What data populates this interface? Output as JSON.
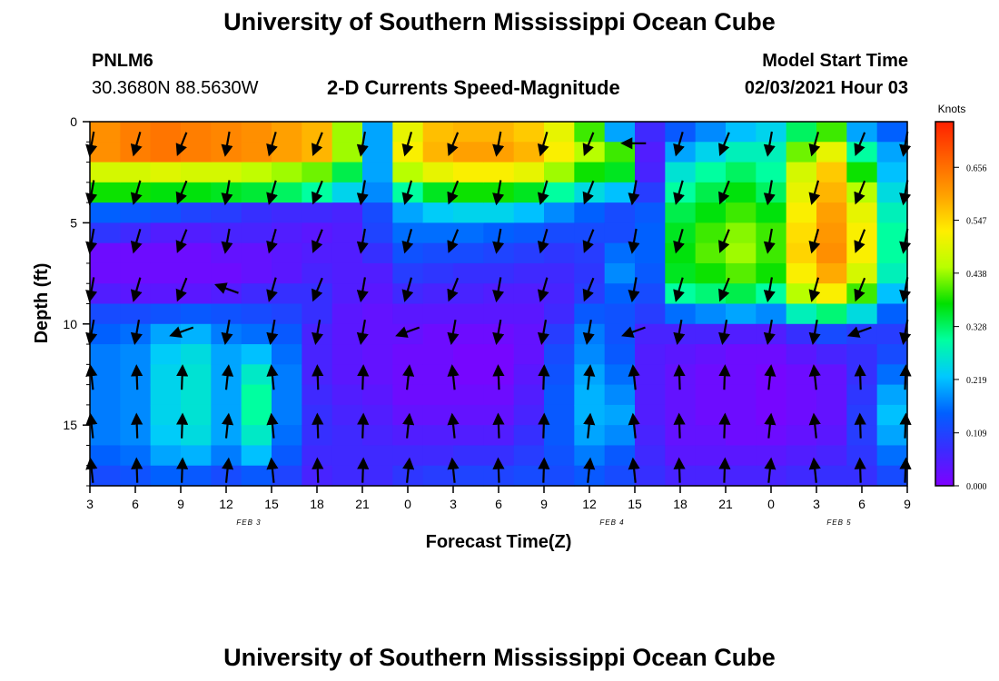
{
  "header": {
    "title": "University of Southern Mississippi Ocean Cube",
    "station_id": "PNLM6",
    "station_coords": "30.3680N 88.5630W",
    "chart_title": "2-D Currents Speed-Magnitude",
    "model_label": "Model Start Time",
    "model_time": "02/03/2021 Hour 03"
  },
  "footer": {
    "title": "University of Southern Mississippi Ocean Cube"
  },
  "chart_data": {
    "type": "heatmap",
    "title": "2-D Currents Speed-Magnitude",
    "xlabel": "Forecast Time(Z)",
    "ylabel": "Depth (ft)",
    "x_tick_labels": [
      "3",
      "6",
      "9",
      "12",
      "15",
      "18",
      "21",
      "0",
      "3",
      "6",
      "9",
      "12",
      "15",
      "18",
      "21",
      "0",
      "3",
      "6",
      "9"
    ],
    "date_labels": [
      {
        "label": "FEB 3",
        "after_tick": 3.5
      },
      {
        "label": "FEB 4",
        "after_tick": 11.5
      },
      {
        "label": "FEB 5",
        "after_tick": 16.5
      }
    ],
    "y_ticks": [
      0,
      5,
      10,
      15
    ],
    "ylim": [
      0,
      18
    ],
    "y_inverted": true,
    "colorbar": {
      "unit_label": "Knots",
      "tick_labels": [
        "0.000",
        "0.109",
        "0.219",
        "0.328",
        "0.438",
        "0.547",
        "0.656"
      ],
      "range": [
        0,
        0.75
      ],
      "colors": [
        "#7f00ff",
        "#3a2cff",
        "#0060ff",
        "#00c8ff",
        "#00ffa0",
        "#00e000",
        "#b8ff00",
        "#ffee00",
        "#ffa000",
        "#ff6000",
        "#ff2000"
      ]
    },
    "depth_levels_ft": [
      0.5,
      1.5,
      2.5,
      3.5,
      4.5,
      5.5,
      6.5,
      7.5,
      8.5,
      9.5,
      10.5,
      11.5,
      12.5,
      13.5,
      14.5,
      15.5,
      16.5,
      17.5
    ],
    "time_steps": [
      {
        "t": 0,
        "speed": [
          0.62,
          0.62,
          0.48,
          0.38,
          0.15,
          0.09,
          0.02,
          0.02,
          0.05,
          0.12,
          0.15,
          0.17,
          0.17,
          0.17,
          0.17,
          0.17,
          0.15,
          0.12
        ]
      },
      {
        "t": 1,
        "speed": [
          0.64,
          0.64,
          0.48,
          0.38,
          0.14,
          0.07,
          0.02,
          0.02,
          0.04,
          0.12,
          0.16,
          0.18,
          0.18,
          0.18,
          0.18,
          0.18,
          0.16,
          0.13
        ]
      },
      {
        "t": 2,
        "speed": [
          0.65,
          0.65,
          0.49,
          0.37,
          0.13,
          0.05,
          0.02,
          0.02,
          0.04,
          0.13,
          0.2,
          0.23,
          0.24,
          0.24,
          0.24,
          0.23,
          0.2,
          0.15
        ]
      },
      {
        "t": 3,
        "speed": [
          0.64,
          0.64,
          0.48,
          0.37,
          0.11,
          0.05,
          0.02,
          0.02,
          0.04,
          0.14,
          0.21,
          0.25,
          0.26,
          0.26,
          0.26,
          0.25,
          0.21,
          0.14
        ]
      },
      {
        "t": 4,
        "speed": [
          0.63,
          0.63,
          0.48,
          0.36,
          0.1,
          0.06,
          0.03,
          0.02,
          0.05,
          0.13,
          0.17,
          0.2,
          0.2,
          0.2,
          0.2,
          0.2,
          0.17,
          0.12
        ]
      },
      {
        "t": 5,
        "speed": [
          0.62,
          0.62,
          0.46,
          0.35,
          0.08,
          0.06,
          0.03,
          0.03,
          0.07,
          0.12,
          0.16,
          0.22,
          0.27,
          0.3,
          0.3,
          0.27,
          0.22,
          0.14
        ]
      },
      {
        "t": 6,
        "speed": [
          0.6,
          0.6,
          0.44,
          0.33,
          0.07,
          0.05,
          0.04,
          0.04,
          0.08,
          0.11,
          0.14,
          0.16,
          0.17,
          0.17,
          0.17,
          0.16,
          0.14,
          0.11
        ]
      },
      {
        "t": 7,
        "speed": [
          0.58,
          0.58,
          0.42,
          0.3,
          0.07,
          0.04,
          0.05,
          0.06,
          0.08,
          0.08,
          0.06,
          0.06,
          0.06,
          0.07,
          0.08,
          0.08,
          0.07,
          0.06
        ]
      },
      {
        "t": 8,
        "speed": [
          0.44,
          0.44,
          0.34,
          0.24,
          0.06,
          0.05,
          0.05,
          0.05,
          0.05,
          0.04,
          0.04,
          0.04,
          0.04,
          0.05,
          0.06,
          0.07,
          0.07,
          0.07
        ]
      },
      {
        "t": 9,
        "speed": [
          0.2,
          0.2,
          0.2,
          0.18,
          0.12,
          0.11,
          0.08,
          0.05,
          0.04,
          0.03,
          0.03,
          0.03,
          0.03,
          0.04,
          0.05,
          0.06,
          0.07,
          0.07
        ]
      },
      {
        "t": 10,
        "speed": [
          0.5,
          0.52,
          0.45,
          0.3,
          0.2,
          0.16,
          0.13,
          0.1,
          0.07,
          0.04,
          0.03,
          0.02,
          0.02,
          0.02,
          0.03,
          0.05,
          0.07,
          0.09
        ]
      },
      {
        "t": 11,
        "speed": [
          0.57,
          0.58,
          0.5,
          0.36,
          0.23,
          0.16,
          0.12,
          0.09,
          0.06,
          0.04,
          0.02,
          0.02,
          0.02,
          0.02,
          0.03,
          0.05,
          0.07,
          0.1
        ]
      },
      {
        "t": 12,
        "speed": [
          0.58,
          0.6,
          0.52,
          0.38,
          0.24,
          0.16,
          0.12,
          0.08,
          0.06,
          0.04,
          0.02,
          0.01,
          0.01,
          0.02,
          0.03,
          0.05,
          0.08,
          0.11
        ]
      },
      {
        "t": 13,
        "speed": [
          0.58,
          0.6,
          0.52,
          0.38,
          0.24,
          0.15,
          0.11,
          0.08,
          0.05,
          0.04,
          0.02,
          0.01,
          0.01,
          0.02,
          0.03,
          0.05,
          0.08,
          0.11
        ]
      },
      {
        "t": 14,
        "speed": [
          0.56,
          0.58,
          0.5,
          0.36,
          0.22,
          0.14,
          0.1,
          0.07,
          0.05,
          0.04,
          0.03,
          0.03,
          0.04,
          0.05,
          0.06,
          0.08,
          0.1,
          0.12
        ]
      },
      {
        "t": 15,
        "speed": [
          0.5,
          0.52,
          0.44,
          0.3,
          0.18,
          0.12,
          0.09,
          0.07,
          0.06,
          0.07,
          0.1,
          0.12,
          0.13,
          0.14,
          0.14,
          0.14,
          0.13,
          0.12
        ]
      },
      {
        "t": 16,
        "speed": [
          0.4,
          0.45,
          0.38,
          0.25,
          0.15,
          0.12,
          0.1,
          0.09,
          0.1,
          0.14,
          0.17,
          0.18,
          0.2,
          0.21,
          0.21,
          0.2,
          0.17,
          0.14
        ]
      },
      {
        "t": 17,
        "speed": [
          0.2,
          0.4,
          0.36,
          0.22,
          0.12,
          0.12,
          0.16,
          0.18,
          0.15,
          0.13,
          0.13,
          0.14,
          0.16,
          0.18,
          0.2,
          0.18,
          0.14,
          0.12
        ]
      },
      {
        "t": 18,
        "speed": [
          0.07,
          0.05,
          0.06,
          0.1,
          0.14,
          0.15,
          0.15,
          0.14,
          0.12,
          0.1,
          0.06,
          0.05,
          0.05,
          0.05,
          0.05,
          0.06,
          0.07,
          0.08
        ]
      },
      {
        "t": 19,
        "speed": [
          0.14,
          0.2,
          0.26,
          0.3,
          0.34,
          0.36,
          0.37,
          0.36,
          0.3,
          0.16,
          0.06,
          0.04,
          0.03,
          0.03,
          0.03,
          0.03,
          0.04,
          0.06
        ]
      },
      {
        "t": 20,
        "speed": [
          0.18,
          0.24,
          0.3,
          0.34,
          0.37,
          0.4,
          0.41,
          0.38,
          0.32,
          0.18,
          0.06,
          0.03,
          0.02,
          0.02,
          0.02,
          0.03,
          0.04,
          0.06
        ]
      },
      {
        "t": 21,
        "speed": [
          0.22,
          0.28,
          0.33,
          0.37,
          0.4,
          0.43,
          0.44,
          0.41,
          0.34,
          0.2,
          0.05,
          0.02,
          0.02,
          0.02,
          0.02,
          0.02,
          0.04,
          0.06
        ]
      },
      {
        "t": 22,
        "speed": [
          0.24,
          0.28,
          0.3,
          0.33,
          0.37,
          0.4,
          0.4,
          0.38,
          0.3,
          0.18,
          0.05,
          0.02,
          0.01,
          0.01,
          0.01,
          0.02,
          0.04,
          0.06
        ]
      },
      {
        "t": 23,
        "speed": [
          0.33,
          0.42,
          0.48,
          0.5,
          0.52,
          0.54,
          0.55,
          0.52,
          0.45,
          0.28,
          0.08,
          0.04,
          0.02,
          0.02,
          0.02,
          0.03,
          0.05,
          0.07
        ]
      },
      {
        "t": 24,
        "speed": [
          0.4,
          0.5,
          0.56,
          0.58,
          0.6,
          0.61,
          0.62,
          0.59,
          0.52,
          0.32,
          0.12,
          0.06,
          0.03,
          0.03,
          0.03,
          0.04,
          0.06,
          0.08
        ]
      },
      {
        "t": 25,
        "speed": [
          0.2,
          0.3,
          0.38,
          0.45,
          0.5,
          0.52,
          0.52,
          0.48,
          0.4,
          0.25,
          0.1,
          0.08,
          0.08,
          0.09,
          0.1,
          0.1,
          0.09,
          0.08
        ]
      },
      {
        "t": 26,
        "speed": [
          0.15,
          0.2,
          0.22,
          0.25,
          0.28,
          0.3,
          0.3,
          0.28,
          0.22,
          0.15,
          0.1,
          0.12,
          0.16,
          0.2,
          0.22,
          0.2,
          0.16,
          0.12
        ]
      }
    ],
    "vector_columns": 19,
    "vector_depths_ft": [
      0.8,
      3.2,
      5.6,
      8.0,
      10.1,
      12.4,
      14.8,
      17.0
    ]
  }
}
